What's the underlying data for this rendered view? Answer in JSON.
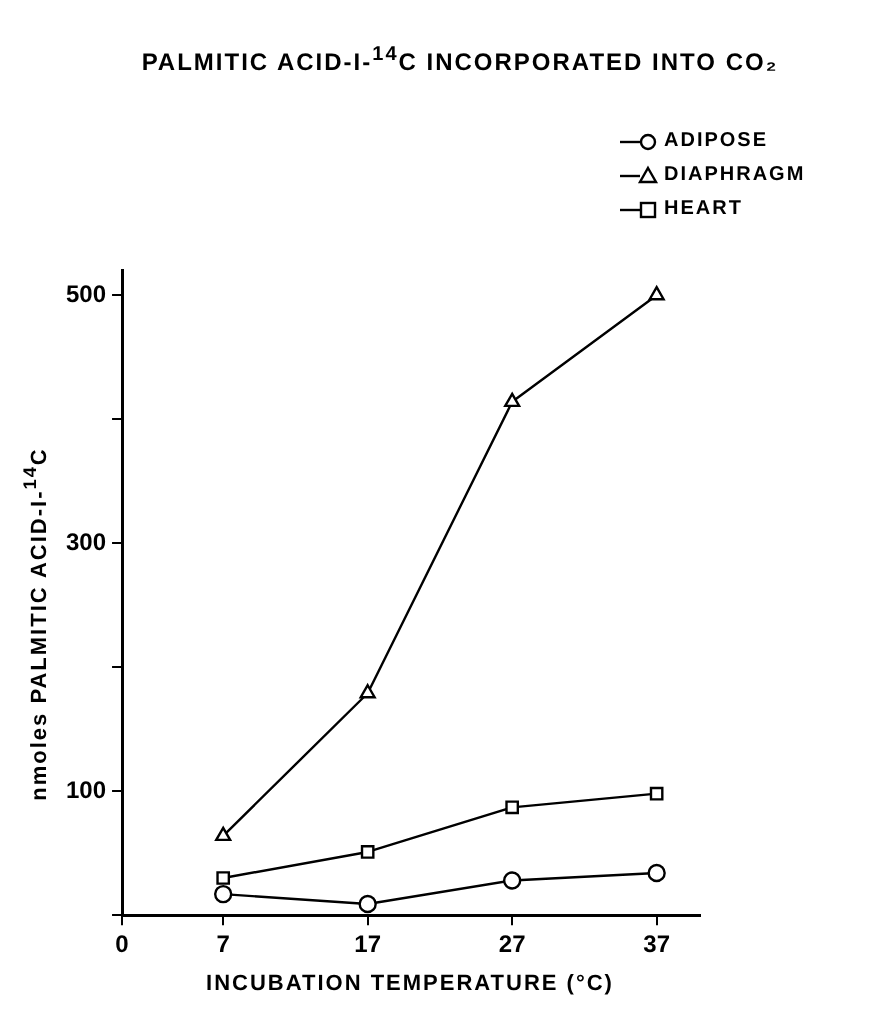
{
  "chart_data": {
    "type": "line",
    "title": "PALMITIC ACID-I-$^{14}$C  INCORPORATED INTO CO₂",
    "xlabel": "INCUBATION TEMPERATURE (°C)",
    "ylabel": "nmoles PALMITIC ACID-I-$^{14}$C",
    "x": [
      7,
      17,
      27,
      37
    ],
    "series": [
      {
        "name": "ADIPOSE",
        "color": "#000000",
        "marker": "circle",
        "values": [
          17,
          9,
          28,
          34
        ]
      },
      {
        "name": "DIAPHRAGM",
        "color": "#000000",
        "marker": "triangle",
        "values": [
          64,
          179,
          414,
          500
        ]
      },
      {
        "name": "HEART",
        "color": "#000000",
        "marker": "square",
        "values": [
          30,
          51,
          87,
          98
        ]
      }
    ],
    "xlim": [
      0,
      40
    ],
    "xticks": [
      0,
      7,
      17,
      27,
      37
    ],
    "ylim": [
      0,
      520
    ],
    "yticks": [
      {
        "value": 0,
        "label": null
      },
      100,
      {
        "value": 200,
        "label": null
      },
      300,
      {
        "value": 400,
        "label": null
      },
      500
    ],
    "grid": false,
    "legend": "top right",
    "line_style": "solid"
  }
}
